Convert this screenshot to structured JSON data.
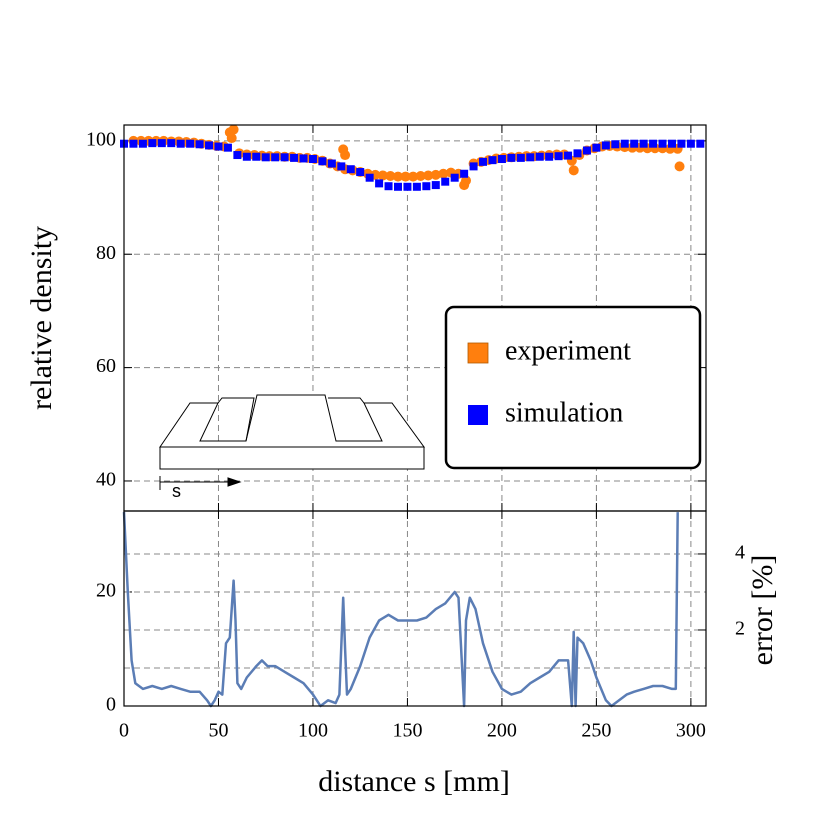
{
  "chart_data": [
    {
      "type": "scatter",
      "ylabel": "relative density",
      "annotation": "s",
      "xlim": [
        0,
        308
      ],
      "xticks": [
        0,
        50,
        100,
        150,
        200,
        250,
        300
      ],
      "ylim": [
        34.7,
        102.8
      ],
      "yticks": [
        40,
        60,
        80,
        100
      ],
      "grid": true,
      "legend": "lower right",
      "series": [
        {
          "name": "experiment",
          "color": "#ff7f0e",
          "marker": "circle",
          "x": [
            5,
            9,
            13,
            17,
            21,
            25,
            29,
            33,
            37,
            41,
            45,
            49,
            53,
            57,
            61,
            65,
            69,
            73,
            77,
            81,
            85,
            89,
            93,
            97,
            101,
            105,
            109,
            113,
            117,
            121,
            125,
            129,
            133,
            137,
            141,
            145,
            149,
            153,
            157,
            161,
            165,
            169,
            173,
            177,
            181,
            185,
            189,
            193,
            197,
            201,
            205,
            209,
            213,
            217,
            221,
            225,
            229,
            233,
            237,
            241,
            245,
            249,
            253,
            257,
            261,
            265,
            269,
            273,
            277,
            281,
            285,
            289,
            293,
            56,
            58,
            116,
            117,
            180,
            238,
            294
          ],
          "values": [
            100,
            100,
            100,
            100,
            100,
            99.9,
            99.9,
            99.8,
            99.7,
            99.5,
            99.3,
            99.1,
            99,
            100.5,
            97.8,
            97.6,
            97.5,
            97.4,
            97.3,
            97.3,
            97.2,
            97.2,
            97,
            97,
            96.8,
            96.5,
            96,
            95.5,
            95,
            94.8,
            94.5,
            94.2,
            94,
            93.9,
            93.8,
            93.7,
            93.7,
            93.7,
            93.8,
            93.9,
            94,
            94.2,
            94.4,
            94.2,
            93,
            96,
            96.3,
            96.6,
            96.9,
            97,
            97.1,
            97.2,
            97.3,
            97.3,
            97.4,
            97.5,
            97.6,
            97.6,
            96.5,
            97.5,
            98.3,
            98.7,
            99,
            99.1,
            99,
            98.9,
            98.8,
            98.8,
            98.7,
            98.7,
            98.7,
            98.6,
            98.6,
            101.5,
            102,
            98.5,
            97.5,
            92.2,
            94.8,
            95.5
          ]
        },
        {
          "name": "simulation",
          "color": "#0000ff",
          "marker": "square",
          "x": [
            0,
            5,
            10,
            15,
            20,
            25,
            30,
            35,
            40,
            45,
            50,
            55,
            60,
            65,
            70,
            75,
            80,
            85,
            90,
            95,
            100,
            105,
            110,
            115,
            120,
            125,
            130,
            135,
            140,
            145,
            150,
            155,
            160,
            165,
            170,
            175,
            180,
            185,
            190,
            195,
            200,
            205,
            210,
            215,
            220,
            225,
            230,
            235,
            240,
            245,
            250,
            255,
            260,
            265,
            270,
            275,
            280,
            285,
            290,
            295,
            300,
            305
          ],
          "values": [
            99.5,
            99.5,
            99.5,
            99.6,
            99.6,
            99.6,
            99.5,
            99.5,
            99.4,
            99.2,
            99,
            98.8,
            97.5,
            97.2,
            97.2,
            97.1,
            97.1,
            97.1,
            97,
            96.9,
            96.8,
            96.4,
            96,
            95.5,
            95,
            94.5,
            93.5,
            92.5,
            92,
            91.9,
            91.9,
            91.9,
            92,
            92.2,
            92.8,
            93.5,
            94.2,
            95.5,
            96.3,
            96.6,
            96.8,
            97,
            97,
            97.1,
            97.2,
            97.2,
            97.3,
            97.4,
            97.8,
            98.3,
            98.8,
            99.2,
            99.4,
            99.5,
            99.5,
            99.5,
            99.5,
            99.5,
            99.5,
            99.5,
            99.5,
            99.5
          ]
        }
      ]
    },
    {
      "type": "line",
      "xlabel": "distance s [mm]",
      "y2label": "error [%]",
      "xlim": [
        0,
        308
      ],
      "xticks": [
        0,
        50,
        100,
        150,
        200,
        250,
        300
      ],
      "ylim": [
        0,
        34.2
      ],
      "yticks": [
        0,
        20
      ],
      "y2lim": [
        0,
        5.13
      ],
      "y2ticks": [
        2,
        4
      ],
      "y2grid": [
        1,
        2,
        3,
        4
      ],
      "grid": true,
      "series": [
        {
          "color": "#5b7db5",
          "x": [
            0,
            2,
            4,
            6,
            10,
            15,
            20,
            25,
            30,
            35,
            40,
            44,
            46,
            48,
            50,
            52,
            54,
            56,
            58,
            59,
            60,
            62,
            65,
            70,
            73,
            76,
            80,
            85,
            90,
            95,
            100,
            104,
            108,
            112,
            114,
            116,
            117,
            118,
            120,
            125,
            130,
            135,
            140,
            145,
            150,
            155,
            160,
            165,
            170,
            175,
            177,
            180,
            181,
            183,
            186,
            190,
            195,
            200,
            205,
            210,
            215,
            220,
            225,
            230,
            235,
            237,
            238,
            239,
            240,
            243,
            247,
            250,
            255,
            258,
            262,
            266,
            270,
            275,
            280,
            285,
            290,
            292,
            293
          ],
          "values": [
            34,
            20,
            8,
            4,
            3,
            3.5,
            3,
            3.5,
            3,
            2.5,
            2.5,
            1,
            0,
            1,
            2.5,
            2,
            11,
            12,
            22,
            15,
            4,
            3,
            5,
            7,
            8,
            7,
            7,
            6,
            5,
            4,
            2,
            0,
            1,
            0.5,
            2,
            19,
            10,
            2,
            3,
            7,
            12,
            15,
            16,
            15,
            15,
            15,
            15.5,
            17,
            18,
            20,
            19,
            0,
            15,
            19,
            17,
            11,
            6,
            3,
            2,
            2.5,
            4,
            5,
            6,
            8,
            8,
            0,
            13,
            0,
            12,
            11,
            8,
            5,
            1,
            0,
            1,
            2,
            2.5,
            3,
            3.5,
            3.5,
            3,
            3,
            34
          ]
        }
      ]
    }
  ]
}
